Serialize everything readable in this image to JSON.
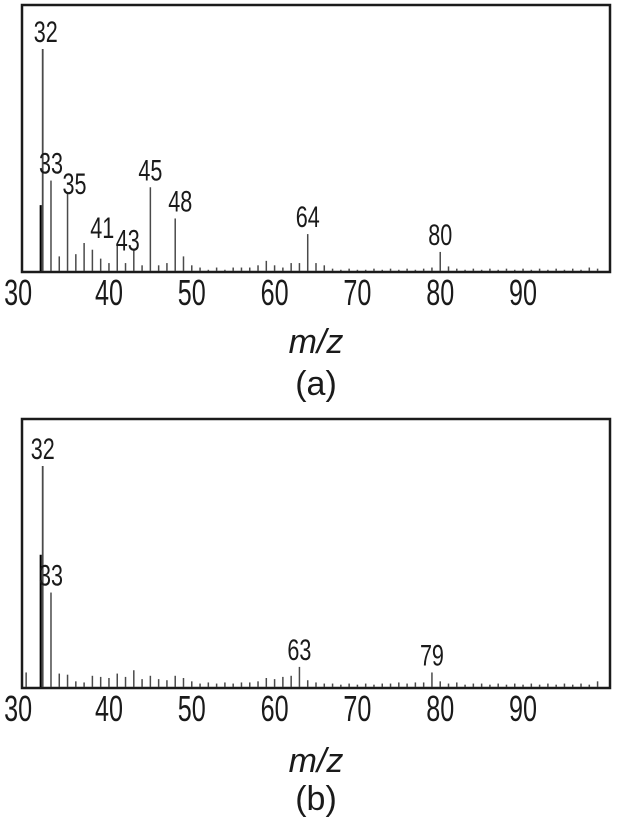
{
  "figure_type": "mass-spectra-two-panels",
  "colors": {
    "background": "#ffffff",
    "frame": "#1b1b1b",
    "peak_line": "#4a4a4a",
    "peak_line_dark": "#000000",
    "text": "#1a1a1a"
  },
  "chart_data": [
    {
      "id": "a",
      "type": "bar",
      "title": "",
      "xlabel": "m/z",
      "caption": "(a)",
      "xlim": [
        29.5,
        100.5
      ],
      "ylim": [
        0,
        105
      ],
      "grid": false,
      "x_ticks": [
        30,
        40,
        50,
        60,
        70,
        80,
        90
      ],
      "labeled_peaks": [
        32,
        33,
        35,
        41,
        43,
        45,
        48,
        64,
        80
      ],
      "peaks": [
        [
          31,
          30
        ],
        [
          32,
          100
        ],
        [
          33,
          41
        ],
        [
          34,
          7
        ],
        [
          35,
          35
        ],
        [
          36,
          8
        ],
        [
          37,
          13
        ],
        [
          38,
          10
        ],
        [
          39,
          6
        ],
        [
          40,
          4
        ],
        [
          41,
          12
        ],
        [
          42,
          4
        ],
        [
          43,
          10
        ],
        [
          44,
          3
        ],
        [
          45,
          38
        ],
        [
          46,
          3
        ],
        [
          47,
          4
        ],
        [
          48,
          24
        ],
        [
          49,
          7
        ],
        [
          50,
          3
        ],
        [
          51,
          2
        ],
        [
          52,
          1
        ],
        [
          53,
          2
        ],
        [
          54,
          1
        ],
        [
          55,
          2
        ],
        [
          56,
          2
        ],
        [
          57,
          2
        ],
        [
          58,
          3
        ],
        [
          59,
          5
        ],
        [
          60,
          3
        ],
        [
          61,
          2
        ],
        [
          62,
          4
        ],
        [
          63,
          4
        ],
        [
          64,
          17
        ],
        [
          65,
          4
        ],
        [
          66,
          3
        ],
        [
          67,
          1.5
        ],
        [
          68,
          1
        ],
        [
          69,
          1.5
        ],
        [
          70,
          1
        ],
        [
          71,
          1
        ],
        [
          72,
          1.5
        ],
        [
          73,
          1
        ],
        [
          74,
          1.5
        ],
        [
          75,
          1
        ],
        [
          76,
          1.5
        ],
        [
          77,
          1
        ],
        [
          78,
          1.5
        ],
        [
          79,
          2
        ],
        [
          80,
          9
        ],
        [
          81,
          2.5
        ],
        [
          82,
          1.5
        ],
        [
          83,
          1
        ],
        [
          84,
          1.5
        ],
        [
          85,
          1
        ],
        [
          86,
          1.5
        ],
        [
          87,
          1
        ],
        [
          88,
          1.5
        ],
        [
          89,
          1
        ],
        [
          90,
          1.5
        ],
        [
          91,
          1
        ],
        [
          92,
          1.5
        ],
        [
          93,
          1
        ],
        [
          94,
          1.5
        ],
        [
          95,
          1
        ],
        [
          96,
          1.5
        ],
        [
          97,
          1
        ],
        [
          98,
          2
        ],
        [
          99,
          1.5
        ]
      ]
    },
    {
      "id": "b",
      "type": "bar",
      "title": "",
      "xlabel": "m/z",
      "caption": "(b)",
      "xlim": [
        29.5,
        100.5
      ],
      "ylim": [
        0,
        105
      ],
      "grid": false,
      "x_ticks": [
        30,
        40,
        50,
        60,
        70,
        80,
        90
      ],
      "labeled_peaks": [
        32,
        33,
        63,
        79
      ],
      "peaks": [
        [
          30,
          7
        ],
        [
          31,
          60
        ],
        [
          32,
          100
        ],
        [
          33,
          43
        ],
        [
          34,
          6.5
        ],
        [
          35,
          6
        ],
        [
          36,
          3
        ],
        [
          37,
          2.5
        ],
        [
          38,
          5.5
        ],
        [
          39,
          5
        ],
        [
          40,
          4.5
        ],
        [
          41,
          6.5
        ],
        [
          42,
          5
        ],
        [
          43,
          8
        ],
        [
          44,
          4
        ],
        [
          45,
          5.5
        ],
        [
          46,
          4
        ],
        [
          47,
          3.5
        ],
        [
          48,
          5.5
        ],
        [
          49,
          4.5
        ],
        [
          50,
          3
        ],
        [
          51,
          2
        ],
        [
          52,
          2.5
        ],
        [
          53,
          2
        ],
        [
          54,
          2.5
        ],
        [
          55,
          2
        ],
        [
          56,
          2.5
        ],
        [
          57,
          2.5
        ],
        [
          58,
          3
        ],
        [
          59,
          4.5
        ],
        [
          60,
          4
        ],
        [
          61,
          5
        ],
        [
          62,
          5.5
        ],
        [
          63,
          9.5
        ],
        [
          64,
          3.5
        ],
        [
          65,
          2.5
        ],
        [
          66,
          2
        ],
        [
          67,
          2
        ],
        [
          68,
          1.5
        ],
        [
          69,
          2
        ],
        [
          70,
          1.5
        ],
        [
          71,
          2
        ],
        [
          72,
          1.5
        ],
        [
          73,
          2
        ],
        [
          74,
          2
        ],
        [
          75,
          2.5
        ],
        [
          76,
          2
        ],
        [
          77,
          2.5
        ],
        [
          78,
          2.5
        ],
        [
          79,
          7
        ],
        [
          80,
          3
        ],
        [
          81,
          2
        ],
        [
          82,
          2.5
        ],
        [
          83,
          1.5
        ],
        [
          84,
          2
        ],
        [
          85,
          2
        ],
        [
          86,
          1.5
        ],
        [
          87,
          2
        ],
        [
          88,
          1.5
        ],
        [
          89,
          2
        ],
        [
          90,
          1.5
        ],
        [
          91,
          2
        ],
        [
          92,
          1.5
        ],
        [
          93,
          2
        ],
        [
          94,
          1.5
        ],
        [
          95,
          2
        ],
        [
          96,
          1.5
        ],
        [
          97,
          2
        ],
        [
          98,
          1.5
        ],
        [
          99,
          3
        ]
      ]
    }
  ]
}
